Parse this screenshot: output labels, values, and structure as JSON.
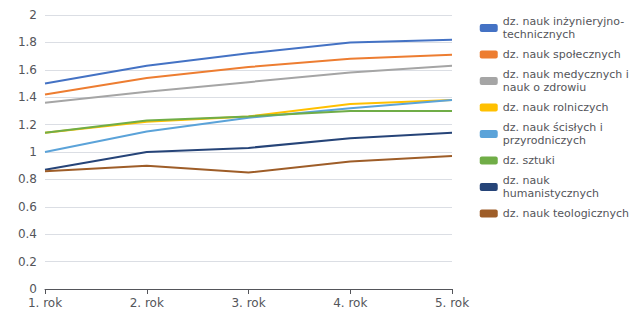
{
  "chart_data": {
    "type": "line",
    "categories": [
      "1. rok",
      "2. rok",
      "3. rok",
      "4. rok",
      "5. rok"
    ],
    "series": [
      {
        "name": "dz. nauk inżynieryjno-\ntechnicznych",
        "color": "#4472c4",
        "values": [
          1.5,
          1.63,
          1.72,
          1.8,
          1.82
        ]
      },
      {
        "name": "dz. nauk społecznych",
        "color": "#ed7d31",
        "values": [
          1.42,
          1.54,
          1.62,
          1.68,
          1.71
        ]
      },
      {
        "name": "dz. nauk medycznych i\nnauk o zdrowiu",
        "color": "#a5a5a5",
        "values": [
          1.36,
          1.44,
          1.51,
          1.58,
          1.63
        ]
      },
      {
        "name": "dz. nauk rolniczych",
        "color": "#ffc000",
        "values": [
          1.14,
          1.22,
          1.26,
          1.35,
          1.38
        ]
      },
      {
        "name": "dz. nauk ścisłych i\nprzyrodniczych",
        "color": "#5ba3d9",
        "values": [
          1.0,
          1.15,
          1.25,
          1.32,
          1.38
        ]
      },
      {
        "name": "dz. sztuki",
        "color": "#70ad47",
        "values": [
          1.14,
          1.23,
          1.26,
          1.3,
          1.3
        ]
      },
      {
        "name": "dz. nauk\nhumanistycznych",
        "color": "#264478",
        "values": [
          0.87,
          1.0,
          1.03,
          1.1,
          1.14
        ]
      },
      {
        "name": "dz. nauk teologicznych",
        "color": "#9e5d28",
        "values": [
          0.86,
          0.9,
          0.85,
          0.93,
          0.97
        ]
      }
    ],
    "ylim": [
      0,
      2
    ],
    "yticks": [
      0,
      0.2,
      0.4,
      0.6,
      0.8,
      1,
      1.2,
      1.4,
      1.6,
      1.8,
      2
    ],
    "grid": true,
    "legend": "right"
  }
}
